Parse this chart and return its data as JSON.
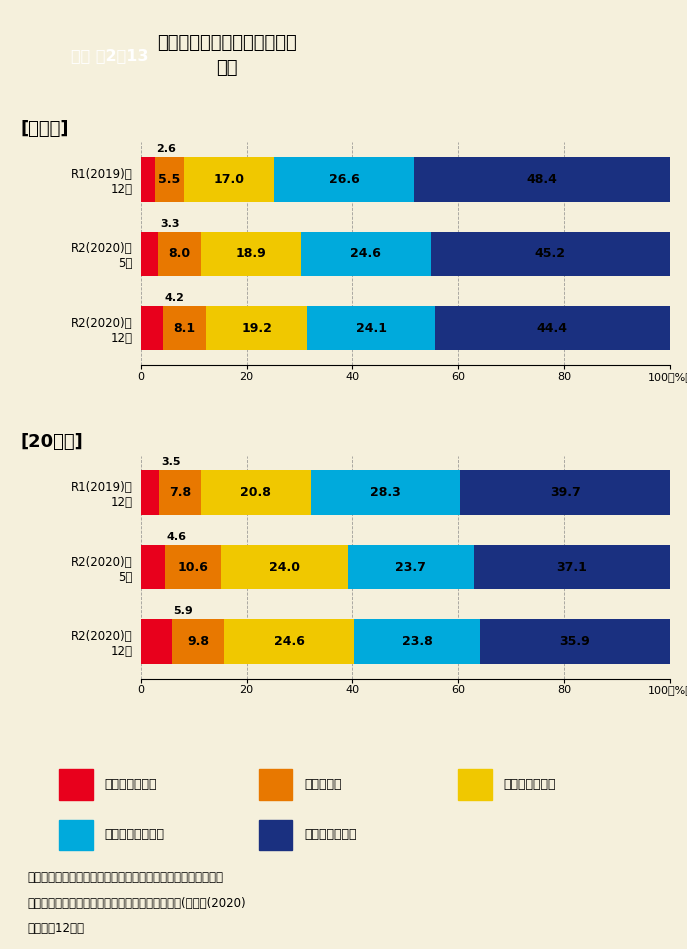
{
  "bg_color": "#f5f0dc",
  "title_box_color": "#2d8b2d",
  "title_box_text": "資料 特2－13",
  "title_line1": "東京圏在住者の地方移住への",
  "title_line2": "関心",
  "section1_label": "[全年齢]",
  "section2_label": "[20歳代]",
  "colors": [
    "#e8001c",
    "#e87800",
    "#f0c800",
    "#00aadc",
    "#1a3080"
  ],
  "legend_labels": [
    "強い関心がある",
    "関心がある",
    "やや関心がある",
    "あまり関心がない",
    "全く関心がない"
  ],
  "group1": {
    "ylabels": [
      "R1(2019)年\n12月",
      "R2(2020)年\n5月",
      "R2(2020)年\n12月"
    ],
    "data": [
      [
        2.6,
        5.5,
        17.0,
        26.6,
        48.4
      ],
      [
        3.3,
        8.0,
        18.9,
        24.6,
        45.2
      ],
      [
        4.2,
        8.1,
        19.2,
        24.1,
        44.4
      ]
    ]
  },
  "group2": {
    "ylabels": [
      "R1(2019)年\n12月",
      "R2(2020)年\n5月",
      "R2(2020)年\n12月"
    ],
    "data": [
      [
        3.5,
        7.8,
        20.8,
        28.3,
        39.7
      ],
      [
        4.6,
        10.6,
        24.0,
        23.7,
        37.1
      ],
      [
        5.9,
        9.8,
        24.6,
        23.8,
        35.9
      ]
    ]
  },
  "source_line1": "出典：内閣府「第２回新型コロナウイルス感染症の影響下にお",
  "source_line2": "　　　ける生活意識・行動の変化に関する調査」(令和２(2020)",
  "source_line3": "　　　年12月）",
  "bar_height": 0.6
}
